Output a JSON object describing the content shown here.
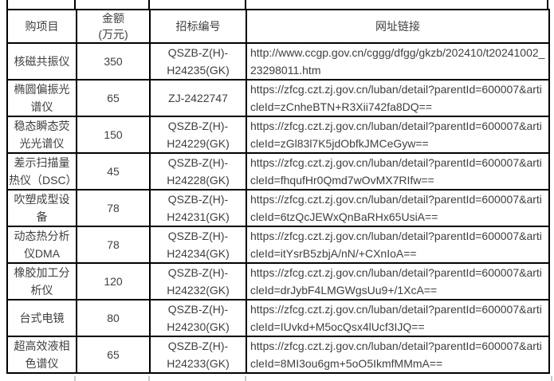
{
  "colors": {
    "background": "#ffffff",
    "border": "#000000",
    "text": "#3f3f3f",
    "crop_stub_bottom": "#c9c9c9"
  },
  "table": {
    "columns": [
      {
        "label": "购项目"
      },
      {
        "label": "金额\n(万元)"
      },
      {
        "label": "招标编号"
      },
      {
        "label": "网址链接"
      }
    ],
    "rows": [
      {
        "item": "核磁共振仪",
        "amount": "350",
        "bid_no": "QSZB-Z(H)-H24235(GK)",
        "url": "http://www.ccgp.gov.cn/cggg/dfgg/gkzb/202410/t20241002_23298011.htm"
      },
      {
        "item": "椭圆偏振光谱仪",
        "amount": "65",
        "bid_no": "ZJ-2422747",
        "url": "https://zfcg.czt.zj.gov.cn/luban/detail?parentId=600007&articleId=zCnheBTN+R3Xii742fa8DQ=="
      },
      {
        "item": "稳态瞬态荧光光谱仪",
        "amount": "150",
        "bid_no": "QSZB-Z(H)-H24229(GK)",
        "url": "https://zfcg.czt.zj.gov.cn/luban/detail?parentId=600007&articleId=zGl83l7K5jdObfkJMCeGyw=="
      },
      {
        "item": "差示扫描量热仪（DSC）",
        "amount": "45",
        "bid_no": "QSZB-Z(H)-H24228(GK)",
        "url": "https://zfcg.czt.zj.gov.cn/luban/detail?parentId=600007&articleId=fhqufHr0Qmd7wOvMX7RIfw=="
      },
      {
        "item": "吹塑成型设备",
        "amount": "78",
        "bid_no": "QSZB-Z(H)-H24231(GK)",
        "url": "https://zfcg.czt.zj.gov.cn/luban/detail?parentId=600007&articleId=6tzQcJEWxQnBaRHx65UsiA=="
      },
      {
        "item": "动态热分析仪DMA",
        "amount": "78",
        "bid_no": "QSZB-Z(H)-H24234(GK)",
        "url": "https://zfcg.czt.zj.gov.cn/luban/detail?parentId=600007&articleId=itYsrB5zbjA/nN/+CXnIoA=="
      },
      {
        "item": "橡胶加工分析仪",
        "amount": "120",
        "bid_no": "QSZB-Z(H)-H24232(GK)",
        "url": "https://zfcg.czt.zj.gov.cn/luban/detail?parentId=600007&articleId=drJybF4LMGWgsUu9+/1XcA=="
      },
      {
        "item": "台式电镜",
        "amount": "80",
        "bid_no": "QSZB-Z(H)-H24230(GK)",
        "url": "https://zfcg.czt.zj.gov.cn/luban/detail?parentId=600007&articleId=IUvkd+M5ocQsx4lUcf3IJQ=="
      },
      {
        "item": "超高效液相色谱仪",
        "amount": "65",
        "bid_no": "QSZB-Z(H)-H24233(GK)",
        "url": "https://zfcg.czt.zj.gov.cn/luban/detail?parentId=600007&articleId=8MI3ou6gm+5oO5IkmfMMmA=="
      }
    ]
  }
}
